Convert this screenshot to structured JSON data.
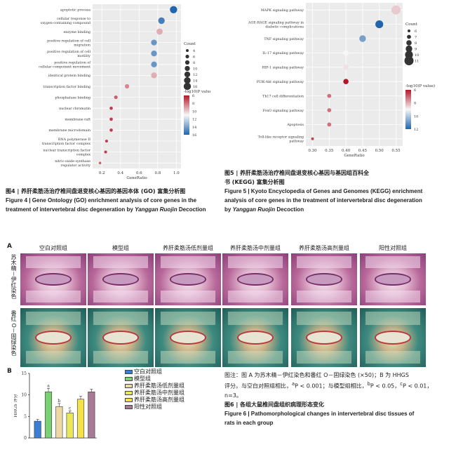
{
  "figure4": {
    "chart_data": {
      "type": "scatter",
      "xlabel": "GeneRatio",
      "xticks": [
        "0.2",
        "0.4",
        "0.6",
        "0.8",
        "1.0"
      ],
      "xlim": [
        0.1,
        1.05
      ],
      "terms": [
        {
          "label": "apoptotic process",
          "x": 0.97,
          "count": 16,
          "p": 16
        },
        {
          "label": "cellular response to oxygen-containing compound",
          "x": 0.84,
          "count": 14,
          "p": 15
        },
        {
          "label": "enzyme binding",
          "x": 0.82,
          "count": 13,
          "p": 8
        },
        {
          "label": "positive regulation of cell migration",
          "x": 0.76,
          "count": 12,
          "p": 14
        },
        {
          "label": "positive regulation of cell motility",
          "x": 0.76,
          "count": 12,
          "p": 14
        },
        {
          "label": "positive regulation of cellular component movement",
          "x": 0.76,
          "count": 12,
          "p": 14
        },
        {
          "label": "identical protein binding",
          "x": 0.76,
          "count": 12,
          "p": 8
        },
        {
          "label": "transcription factor binding",
          "x": 0.47,
          "count": 8,
          "p": 7
        },
        {
          "label": "phosphatase binding",
          "x": 0.35,
          "count": 6,
          "p": 6
        },
        {
          "label": "nuclear chromatin",
          "x": 0.3,
          "count": 5,
          "p": 5
        },
        {
          "label": "membrane raft",
          "x": 0.3,
          "count": 5,
          "p": 5
        },
        {
          "label": "membrane microdomain",
          "x": 0.3,
          "count": 5,
          "p": 5
        },
        {
          "label": "RNA polymerase II transcription factor complex",
          "x": 0.25,
          "count": 4,
          "p": 5
        },
        {
          "label": "nuclear transcription factor complex",
          "x": 0.24,
          "count": 4,
          "p": 5
        },
        {
          "label": "nitric-oxide synthase regulator activity",
          "x": 0.18,
          "count": 3,
          "p": 6
        }
      ],
      "count_legend": {
        "title": "Count",
        "values": [
          "4",
          "6",
          "8",
          "10",
          "12",
          "14",
          "16"
        ]
      },
      "color_legend": {
        "title": "-log10(P value)",
        "ticks": [
          "6",
          "8",
          "10",
          "12",
          "14",
          "16"
        ]
      }
    },
    "caption_zh": "图4 | 养肝柔筋汤治疗椎间盘退变核心基因的基因本体 (GO) 富集分析图",
    "caption_en_1": "Figure 4 | Gene Ontology (GO) enrichment analysis of core genes in the",
    "caption_en_2": "treatment of intervertebral disc degeneration by",
    "caption_en_italic": "Yanggan Ruojin",
    "caption_en_tail": "Decoction"
  },
  "figure5": {
    "chart_data": {
      "type": "scatter",
      "xlabel": "GeneRatio",
      "xticks": [
        "0.30",
        "0.35",
        "0.40",
        "0.45",
        "0.50",
        "0.55"
      ],
      "xlim": [
        0.28,
        0.57
      ],
      "terms": [
        {
          "label": "MAPK signaling pathway",
          "x": 0.55,
          "count": 11,
          "p": 6
        },
        {
          "label": "AGE-RAGE signaling pathway in diabetic complications",
          "x": 0.5,
          "count": 10,
          "p": 12
        },
        {
          "label": "TNF signaling pathway",
          "x": 0.45,
          "count": 9,
          "p": 10
        },
        {
          "label": "IL-17 signaling pathway",
          "x": 0.4,
          "count": 8,
          "p": 7
        },
        {
          "label": "HIF-1 signaling pathway",
          "x": 0.4,
          "count": 8,
          "p": 6.5
        },
        {
          "label": "PI3K-Akt signaling pathway",
          "x": 0.4,
          "count": 8,
          "p": 2
        },
        {
          "label": "Th17 cell differentiation",
          "x": 0.35,
          "count": 7,
          "p": 4
        },
        {
          "label": "FoxO signaling pathway",
          "x": 0.35,
          "count": 7,
          "p": 4
        },
        {
          "label": "Apoptosis",
          "x": 0.35,
          "count": 7,
          "p": 4
        },
        {
          "label": "Toll-like receptor signaling pathway",
          "x": 0.3,
          "count": 6,
          "p": 3
        }
      ],
      "count_legend": {
        "title": "Count",
        "values": [
          "6",
          "7",
          "8",
          "9",
          "10",
          "11"
        ]
      },
      "color_legend": {
        "title": "-log10(P value)",
        "ticks": [
          "6",
          "8",
          "10",
          "12"
        ]
      }
    },
    "caption_zh_1": "图5 | 养肝柔筋汤治疗椎间盘退变核心基因与基因组百科全",
    "caption_zh_2": "书 (KEGG) 富集分析图",
    "caption_en_1": "Figure 5 | Kyoto Encyclopedia of Genes and Genomes (KEGG) enrichment",
    "caption_en_2": "analysis of core genes in the treatment of intervertebral disc degeneration",
    "caption_en_3_pre": "by",
    "caption_en_italic": "Yanggan Ruojin",
    "caption_en_tail": "Decoction"
  },
  "figure6": {
    "panel_a_label": "A",
    "panel_b_label": "B",
    "columns": [
      "空白对照组",
      "模型组",
      "养肝柔筋汤低剂量组",
      "养肝柔筋汤中剂量组",
      "养肝柔筋汤高剂量组",
      "阳性对照组"
    ],
    "row_he": "苏木精－伊红染色",
    "row_sf": "番红 O－固绿染色",
    "chart_data": {
      "type": "bar",
      "ylabel": "HHGS 评分",
      "ylim": [
        0,
        15
      ],
      "yticks": [
        "0",
        "5",
        "10",
        "15"
      ],
      "series": [
        {
          "name": "空白对照组",
          "value": 3.9,
          "err": 0.4,
          "sig": "",
          "color": "#3a7fd4"
        },
        {
          "name": "模型组",
          "value": 10.7,
          "err": 0.8,
          "sig": "a",
          "color": "#7ccf74"
        },
        {
          "name": "养肝柔筋汤低剂量组",
          "value": 7.3,
          "err": 0.7,
          "sig": "b",
          "color": "#eed9a4"
        },
        {
          "name": "养肝柔筋汤中剂量组",
          "value": 5.8,
          "err": 0.5,
          "sig": "c",
          "color": "#e9e75a"
        },
        {
          "name": "养肝柔筋汤高剂量组",
          "value": 9.0,
          "err": 0.7,
          "sig": "",
          "color": "#f3e24a"
        },
        {
          "name": "阳性对照组",
          "value": 10.7,
          "err": 0.6,
          "sig": "",
          "color": "#a77b96"
        }
      ]
    },
    "note_1": "图注：图 A 为苏木精－伊红染色和番红 O－固绿染色 (×50)；B 为 HHGS",
    "note_2a": "评分。与空白对照组相比，",
    "note_2b": "P < 0.001；与模型组相比，",
    "note_2c": "P < 0.05，",
    "note_2d": "P < 0.01，",
    "note_sup_a": "a",
    "note_sup_b": "b",
    "note_sup_c": "c",
    "note_3": "n=3。",
    "caption_zh": "图6 | 各组大鼠椎间盘组织病理形态变化",
    "caption_en_1": "Figure 6 | Pathomorphological changes in intervertebral disc tissues of",
    "caption_en_2": "rats in each group"
  }
}
